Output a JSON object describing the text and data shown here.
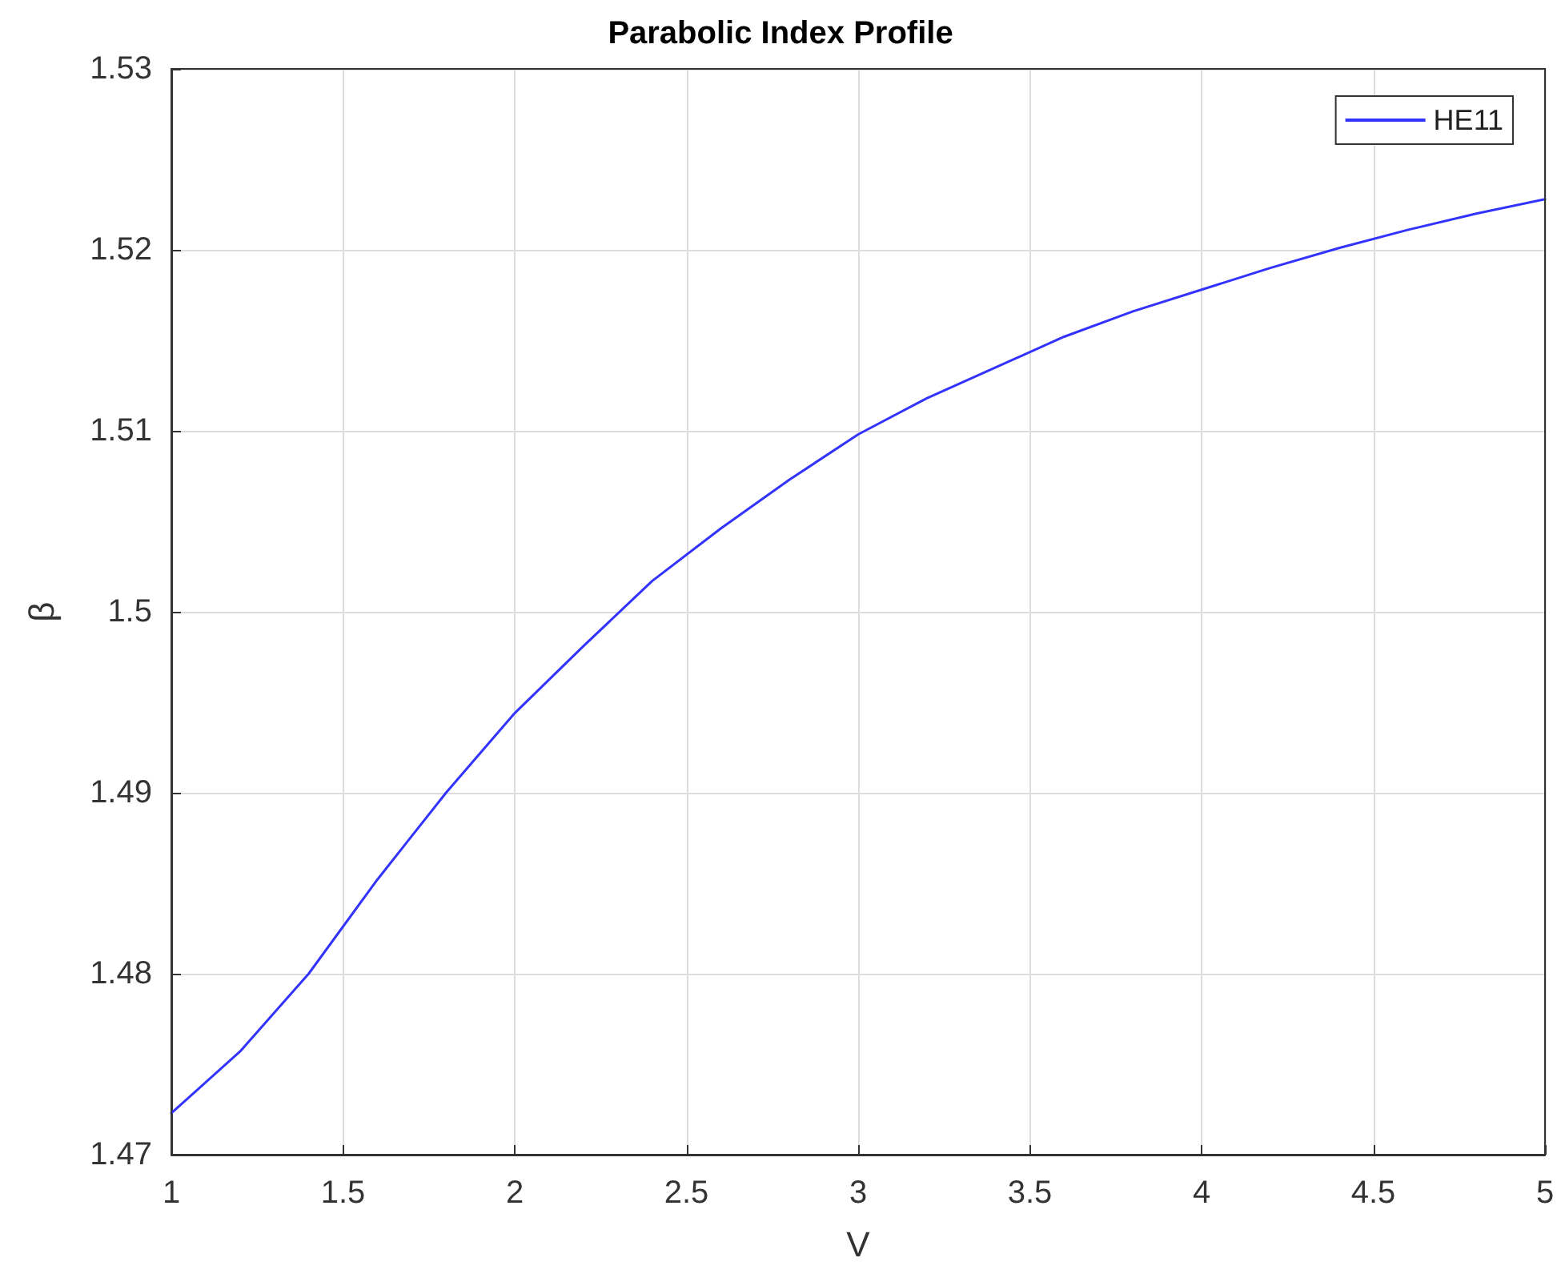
{
  "chart_data": {
    "type": "line",
    "title": "Parabolic Index Profile",
    "xlabel": "V",
    "ylabel": "β",
    "x": [
      1,
      1.2,
      1.4,
      1.6,
      1.8,
      2,
      2.2,
      2.4,
      2.6,
      2.8,
      3,
      3.2,
      3.4,
      3.6,
      3.8,
      4,
      4.2,
      4.4,
      4.6,
      4.8,
      5
    ],
    "series": [
      {
        "name": "HE11",
        "color": "#3333ff",
        "values": [
          1.4723,
          1.4757,
          1.48,
          1.4852,
          1.49,
          1.4944,
          1.4981,
          1.5017,
          1.5046,
          1.5073,
          1.5098,
          1.5118,
          1.5135,
          1.5152,
          1.5166,
          1.5178,
          1.519,
          1.5201,
          1.5211,
          1.522,
          1.5228
        ]
      }
    ],
    "xlim": [
      1,
      5
    ],
    "xticks": [
      1,
      1.5,
      2,
      2.5,
      3,
      3.5,
      4,
      4.5,
      5
    ],
    "ylim": [
      1.47,
      1.53
    ],
    "yticks": [
      1.47,
      1.48,
      1.49,
      1.5,
      1.51,
      1.52,
      1.53
    ],
    "grid": true,
    "legend": "top right",
    "marker": "none",
    "line_style": "solid"
  }
}
